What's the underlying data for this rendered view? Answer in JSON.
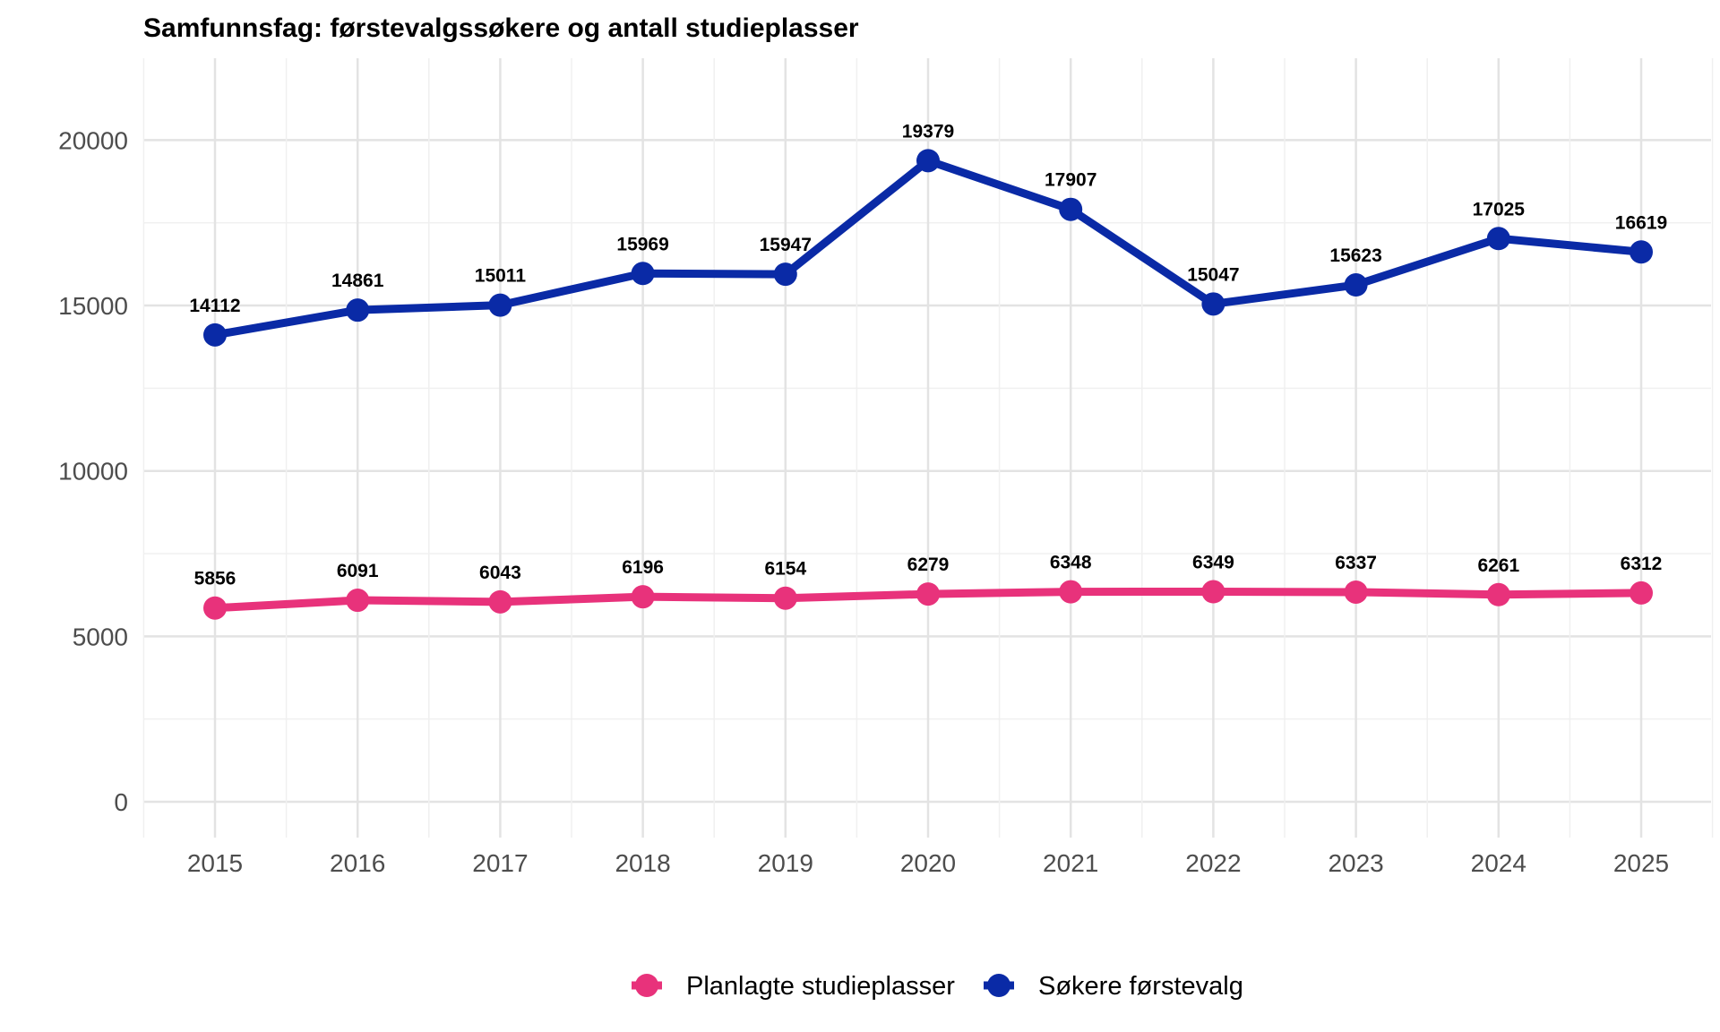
{
  "chart_data": {
    "type": "line",
    "title": "Samfunnsfag: førstevalgssøkere og antall studieplasser",
    "xlabel": "",
    "ylabel": "",
    "x": [
      "2015",
      "2016",
      "2017",
      "2018",
      "2019",
      "2020",
      "2021",
      "2022",
      "2023",
      "2024",
      "2025"
    ],
    "ylim": [
      0,
      22000
    ],
    "yticks": [
      "0",
      "5000",
      "10000",
      "15000",
      "20000"
    ],
    "grid": true,
    "legend_position": "bottom",
    "series": [
      {
        "name": "Planlagte studieplasser",
        "color": "#E8327B",
        "values": [
          5856,
          6091,
          6043,
          6196,
          6154,
          6279,
          6348,
          6349,
          6337,
          6261,
          6312
        ]
      },
      {
        "name": "Søkere førstevalg",
        "color": "#0A2AA6",
        "values": [
          14112,
          14861,
          15011,
          15969,
          15947,
          19379,
          17907,
          15047,
          15623,
          17025,
          16619
        ]
      }
    ]
  }
}
